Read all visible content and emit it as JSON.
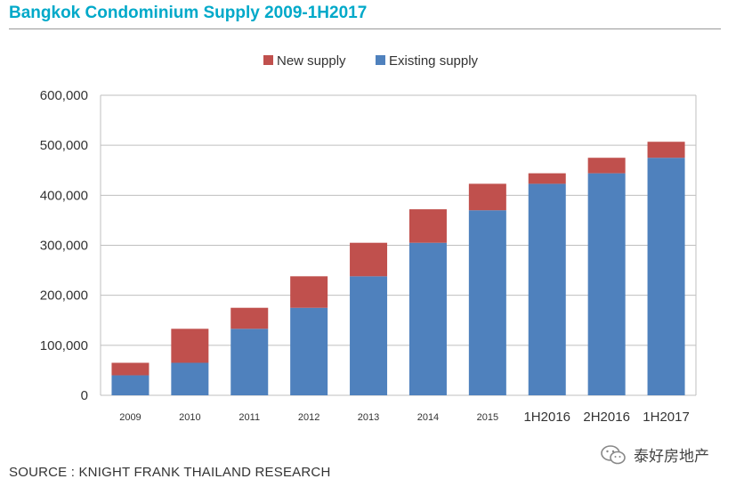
{
  "title": "Bangkok Condominium Supply 2009-1H2017",
  "source": "SOURCE : KNIGHT FRANK THAILAND RESEARCH",
  "watermark": {
    "text": "泰好房地产",
    "icon": "wechat-icon"
  },
  "colors": {
    "title": "#00a9c9",
    "new_supply": "#c0504d",
    "existing_supply": "#4f81bd"
  },
  "chart_data": {
    "type": "bar",
    "stacked": true,
    "categories": [
      "2009",
      "2010",
      "2011",
      "2012",
      "2013",
      "2014",
      "2015",
      "1H2016",
      "2H2016",
      "1H2017"
    ],
    "series": [
      {
        "name": "Existing supply",
        "values": [
          40000,
          65000,
          133000,
          175000,
          238000,
          305000,
          370000,
          423000,
          444000,
          475000
        ]
      },
      {
        "name": "New supply",
        "values": [
          25000,
          68000,
          42000,
          63000,
          67000,
          67000,
          53000,
          21000,
          31000,
          32000
        ]
      }
    ],
    "legend_order": [
      "New supply",
      "Existing supply"
    ],
    "yticks": [
      "0",
      "100,000",
      "200,000",
      "300,000",
      "400,000",
      "500,000",
      "600,000"
    ],
    "ylim": [
      0,
      600000
    ],
    "grid": true,
    "legend_position": "top"
  }
}
